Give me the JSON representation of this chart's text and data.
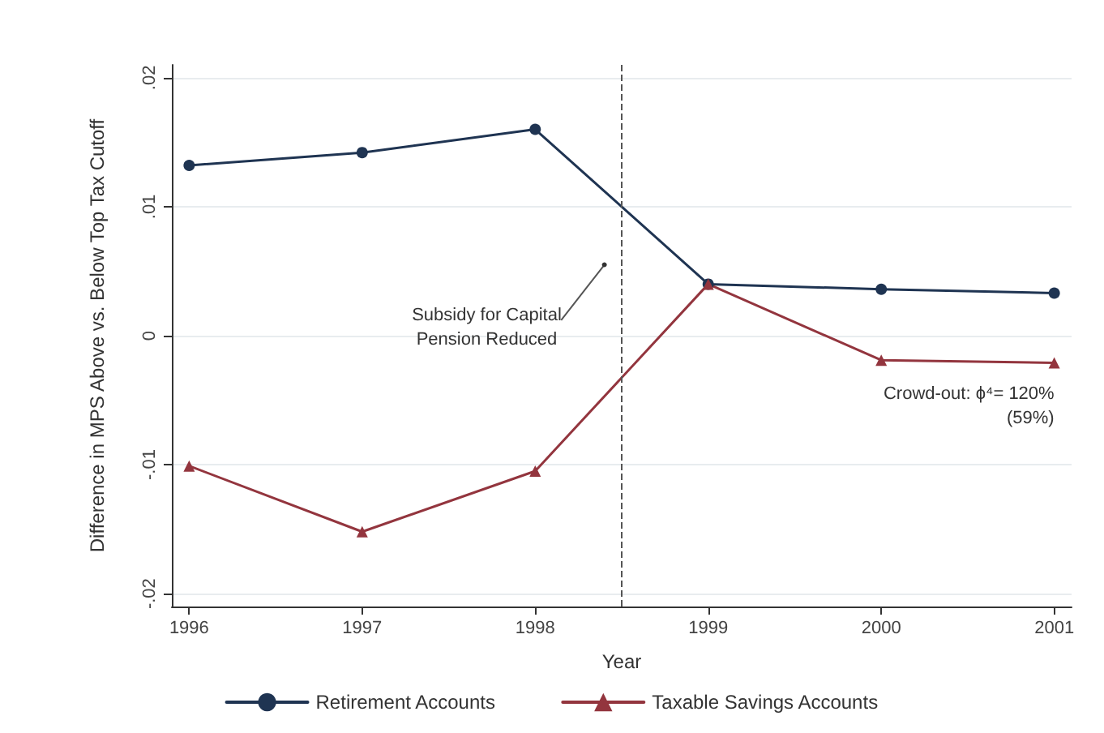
{
  "chart_data": {
    "type": "line",
    "xlabel": "Year",
    "ylabel": "Difference in MPS Above vs. Below Top Tax Cutoff",
    "x": [
      1996,
      1997,
      1998,
      1999,
      2000,
      2001
    ],
    "series": [
      {
        "name": "Retirement Accounts",
        "color": "#1f3452",
        "marker": "circle",
        "values": [
          0.0132,
          0.0142,
          0.016,
          0.004,
          0.0036,
          0.0033
        ]
      },
      {
        "name": "Taxable Savings Accounts",
        "color": "#93353e",
        "marker": "triangle",
        "values": [
          -0.0101,
          -0.0152,
          -0.0105,
          0.004,
          -0.0019,
          -0.0021
        ]
      }
    ],
    "xlim": [
      1995.9,
      2001.1
    ],
    "xticks": [
      1996,
      1997,
      1998,
      1999,
      2000,
      2001
    ],
    "ylim": [
      -0.021,
      0.021
    ],
    "yticks": [
      {
        "value": -0.02,
        "label": "-.02"
      },
      {
        "value": -0.01,
        "label": "-.01"
      },
      {
        "value": 0,
        "label": "0"
      },
      {
        "value": 0.01,
        "label": ".01"
      },
      {
        "value": 0.02,
        "label": ".02"
      }
    ],
    "grid": "y",
    "legend": "bottom",
    "line_style": "solid",
    "ref_lines": [
      {
        "axis": "x",
        "value": 1998.5,
        "color": "#555555",
        "line_style": "dashed"
      }
    ],
    "annotations": [
      "Subsidy for Capital\nPension Reduced",
      "Crowd-out: ϕ⁴= 120%\n(59%)"
    ]
  }
}
